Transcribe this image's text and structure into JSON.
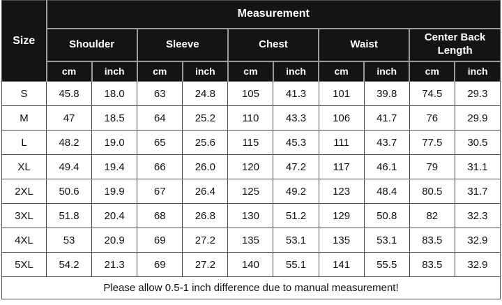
{
  "chart_data": {
    "type": "table",
    "title": "Measurement",
    "columns": [
      "Size",
      "Shoulder cm",
      "Shoulder inch",
      "Sleeve cm",
      "Sleeve inch",
      "Chest cm",
      "Chest inch",
      "Waist cm",
      "Waist inch",
      "Center Back Length cm",
      "Center Back Length inch"
    ],
    "rows": [
      [
        "S",
        45.8,
        18.0,
        63,
        24.8,
        105,
        41.3,
        101,
        39.8,
        74.5,
        29.3
      ],
      [
        "M",
        47,
        18.5,
        64,
        25.2,
        110,
        43.3,
        106,
        41.7,
        76,
        29.9
      ],
      [
        "L",
        48.2,
        19.0,
        65,
        25.6,
        115,
        45.3,
        111,
        43.7,
        77.5,
        30.5
      ],
      [
        "XL",
        49.4,
        19.4,
        66,
        26.0,
        120,
        47.2,
        117,
        46.1,
        79,
        31.1
      ],
      [
        "2XL",
        50.6,
        19.9,
        67,
        26.4,
        125,
        49.2,
        123,
        48.4,
        80.5,
        31.7
      ],
      [
        "3XL",
        51.8,
        20.4,
        68,
        26.8,
        130,
        51.2,
        129,
        50.8,
        82,
        32.3
      ],
      [
        "4XL",
        53,
        20.9,
        69,
        27.2,
        135,
        53.1,
        135,
        53.1,
        83.5,
        32.9
      ],
      [
        "5XL",
        54.2,
        21.3,
        69,
        27.2,
        140,
        55.1,
        141,
        55.5,
        83.5,
        32.9
      ]
    ],
    "note": "Please allow 0.5-1 inch difference due to manual measurement!"
  },
  "table": {
    "size_label": "Size",
    "measurement_label": "Measurement",
    "groups": [
      {
        "label": "Shoulder"
      },
      {
        "label": "Sleeve"
      },
      {
        "label": "Chest"
      },
      {
        "label": "Waist"
      },
      {
        "label": "Center Back Length"
      }
    ],
    "unit_labels": [
      "cm",
      "inch"
    ],
    "rows": [
      {
        "size": "S",
        "values": [
          "45.8",
          "18.0",
          "63",
          "24.8",
          "105",
          "41.3",
          "101",
          "39.8",
          "74.5",
          "29.3"
        ]
      },
      {
        "size": "M",
        "values": [
          "47",
          "18.5",
          "64",
          "25.2",
          "110",
          "43.3",
          "106",
          "41.7",
          "76",
          "29.9"
        ]
      },
      {
        "size": "L",
        "values": [
          "48.2",
          "19.0",
          "65",
          "25.6",
          "115",
          "45.3",
          "111",
          "43.7",
          "77.5",
          "30.5"
        ]
      },
      {
        "size": "XL",
        "values": [
          "49.4",
          "19.4",
          "66",
          "26.0",
          "120",
          "47.2",
          "117",
          "46.1",
          "79",
          "31.1"
        ]
      },
      {
        "size": "2XL",
        "values": [
          "50.6",
          "19.9",
          "67",
          "26.4",
          "125",
          "49.2",
          "123",
          "48.4",
          "80.5",
          "31.7"
        ]
      },
      {
        "size": "3XL",
        "values": [
          "51.8",
          "20.4",
          "68",
          "26.8",
          "130",
          "51.2",
          "129",
          "50.8",
          "82",
          "32.3"
        ]
      },
      {
        "size": "4XL",
        "values": [
          "53",
          "20.9",
          "69",
          "27.2",
          "135",
          "53.1",
          "135",
          "53.1",
          "83.5",
          "32.9"
        ]
      },
      {
        "size": "5XL",
        "values": [
          "54.2",
          "21.3",
          "69",
          "27.2",
          "140",
          "55.1",
          "141",
          "55.5",
          "83.5",
          "32.9"
        ]
      }
    ],
    "footer_note": "Please allow 0.5-1 inch difference due to manual measurement!"
  },
  "colors": {
    "header_bg": "#141414",
    "header_text": "#ffffff",
    "header_divider": "#9c9c9c",
    "body_border": "#4d4d4d",
    "body_text": "#111111",
    "background": "#ffffff"
  }
}
